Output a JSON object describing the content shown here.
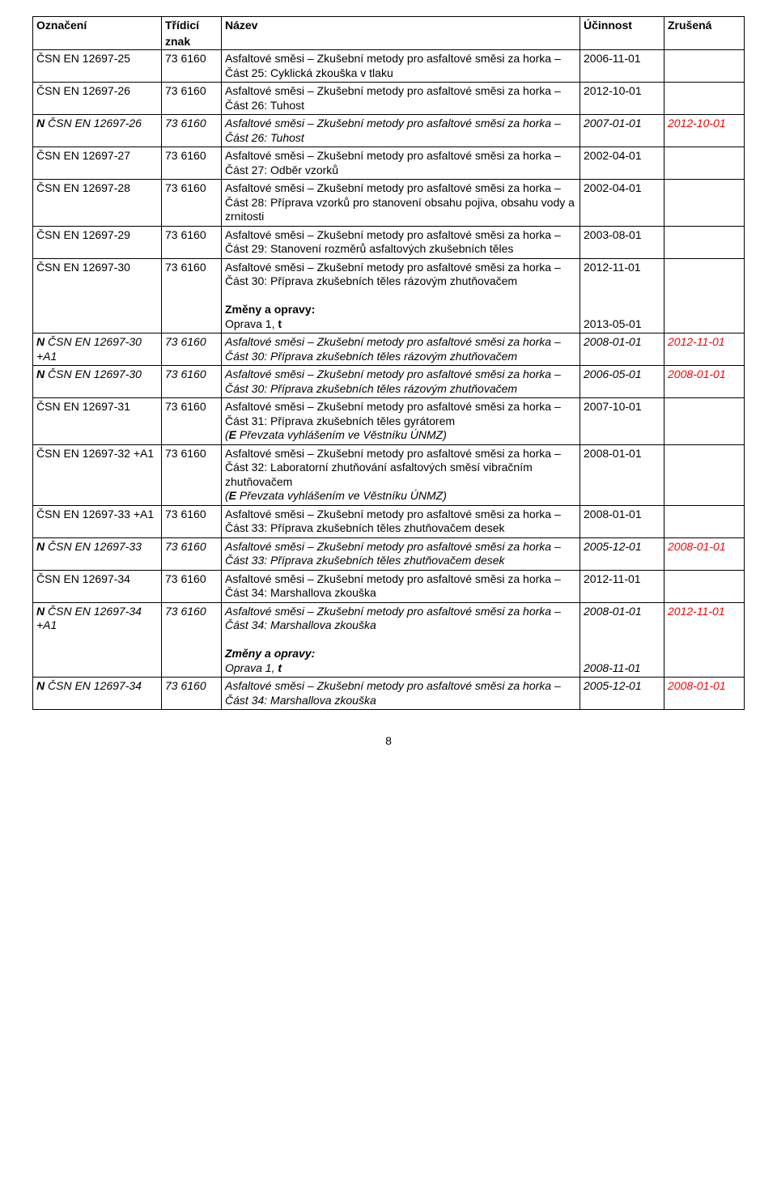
{
  "headers": {
    "oznaceni": "Označení",
    "tridici": "Třídicí",
    "znak": "znak",
    "nazev": "Název",
    "ucinnost": "Účinnost",
    "zrusena": "Zrušená"
  },
  "changes_label": "Změny a opravy:",
  "page_number": "8",
  "rows": [
    {
      "oznaceni": "ČSN EN 12697-25",
      "znak": "73 6160",
      "nazev": "Asfaltové směsi – Zkušební metody pro asfaltové směsi za horka – Část 25: Cyklická zkouška v tlaku",
      "ucinnost": "2006-11-01",
      "zrusena": "",
      "italic": false
    },
    {
      "oznaceni": "ČSN EN 12697-26",
      "znak": "73 6160",
      "nazev": "Asfaltové směsi – Zkušební metody pro asfaltové směsi za horka – Část 26: Tuhost",
      "ucinnost": "2012-10-01",
      "zrusena": "",
      "italic": false
    },
    {
      "oznaceni": "N ČSN EN 12697-26",
      "znak": "73 6160",
      "nazev": "Asfaltové směsi – Zkušební metody pro asfaltové směsi za horka – Část 26: Tuhost",
      "ucinnost": "2007-01-01",
      "zrusena": "2012-10-01",
      "italic": true,
      "oz_bold_prefix": "N "
    },
    {
      "oznaceni": "ČSN EN 12697-27",
      "znak": "73 6160",
      "nazev": "Asfaltové směsi – Zkušební metody pro asfaltové směsi za horka – Část 27: Odběr vzorků",
      "ucinnost": "2002-04-01",
      "zrusena": "",
      "italic": false
    },
    {
      "oznaceni": "ČSN EN 12697-28",
      "znak": "73 6160",
      "nazev": "Asfaltové směsi – Zkušební metody pro asfaltové směsi za horka – Část 28: Příprava vzorků pro stanovení obsahu pojiva, obsahu vody a zrnitosti",
      "ucinnost": "2002-04-01",
      "zrusena": "",
      "italic": false
    },
    {
      "oznaceni": "ČSN EN 12697-29",
      "znak": "73 6160",
      "nazev": "Asfaltové směsi – Zkušební metody pro asfaltové směsi za horka – Část 29: Stanovení rozměrů asfaltových zkušebních těles",
      "ucinnost": "2003-08-01",
      "zrusena": "",
      "italic": false
    },
    {
      "oznaceni": "ČSN EN 12697-30",
      "znak": "73 6160",
      "nazev": "Asfaltové směsi – Zkušební metody pro asfaltové směsi za horka – Část 30: Příprava zkušebních těles rázovým zhutňovačem",
      "ucinnost": "2012-11-01",
      "zrusena": "",
      "italic": false,
      "changes": "Oprava 1, t",
      "changes_bold_after": "t",
      "changes_pre": "Oprava 1, ",
      "changes_date": "2013-05-01"
    },
    {
      "oznaceni": "N ČSN EN 12697-30 +A1",
      "znak": "73 6160",
      "nazev": "Asfaltové směsi – Zkušební metody pro asfaltové směsi za horka – Část 30: Příprava zkušebních těles rázovým zhutňovačem",
      "ucinnost": "2008-01-01",
      "zrusena": "2012-11-01",
      "italic": true,
      "oz_bold_prefix": "N "
    },
    {
      "oznaceni": "N ČSN EN 12697-30",
      "znak": "73 6160",
      "nazev": "Asfaltové směsi – Zkušební metody pro asfaltové směsi za horka – Část 30: Příprava zkušebních těles rázovým zhutňovačem",
      "ucinnost": "2006-05-01",
      "zrusena": "2008-01-01",
      "italic": true,
      "oz_bold_prefix": "N "
    },
    {
      "oznaceni": "ČSN EN 12697-31",
      "znak": "73 6160",
      "nazev": "Asfaltové směsi – Zkušební metody pro asfaltové směsi za horka – Část 31: Příprava zkušebních těles gyrátorem",
      "ucinnost": "2007-10-01",
      "zrusena": "",
      "italic": false,
      "note_pre": "(",
      "note_bold": "E",
      "note_italic": " Převzata vyhlášením ve Věstníku ÚNMZ)",
      "has_note": true
    },
    {
      "oznaceni": "ČSN EN 12697-32 +A1",
      "znak": "73 6160",
      "nazev": "Asfaltové směsi – Zkušební metody pro asfaltové směsi za horka – Část 32: Laboratorní zhutňování asfaltových směsí vibračním zhutňovačem",
      "ucinnost": "2008-01-01",
      "zrusena": "",
      "italic": false,
      "note_pre": "(",
      "note_bold": "E",
      "note_italic": " Převzata vyhlášením ve Věstníku ÚNMZ)",
      "has_note": true
    },
    {
      "oznaceni": "ČSN EN 12697-33 +A1",
      "znak": "73 6160",
      "nazev": "Asfaltové směsi – Zkušební metody pro asfaltové směsi za horka – Část 33: Příprava zkušebních těles zhutňovačem desek",
      "ucinnost": "2008-01-01",
      "zrusena": "",
      "italic": false
    },
    {
      "oznaceni": "N ČSN EN 12697-33",
      "znak": "73 6160",
      "nazev": "Asfaltové směsi – Zkušební metody pro asfaltové směsi za horka – Část 33: Příprava zkušebních těles zhutňovačem desek",
      "ucinnost": "2005-12-01",
      "zrusena": "2008-01-01",
      "italic": true,
      "oz_bold_prefix": "N "
    },
    {
      "oznaceni": "ČSN EN 12697-34",
      "znak": "73 6160",
      "nazev": "Asfaltové směsi – Zkušební metody pro asfaltové směsi za horka – Část 34: Marshallova zkouška",
      "ucinnost": "2012-11-01",
      "zrusena": "",
      "italic": false
    },
    {
      "oznaceni": "N ČSN EN 12697-34 +A1",
      "znak": "73 6160",
      "nazev": "Asfaltové směsi – Zkušební metody pro asfaltové směsi za horka – Část 34: Marshallova zkouška",
      "ucinnost": "2008-01-01",
      "zrusena": "2012-11-01",
      "italic": true,
      "oz_bold_prefix": "N ",
      "changes_italic": true,
      "changes_label_suffix": ":",
      "changes_pre": "Oprava 1, ",
      "changes_bold_after": "t",
      "changes_date": "2008-11-01"
    },
    {
      "oznaceni": "N ČSN EN 12697-34",
      "znak": "73 6160",
      "nazev": "Asfaltové směsi – Zkušební metody pro asfaltové směsi za horka – Část 34: Marshallova zkouška",
      "ucinnost": "2005-12-01",
      "zrusena": "2008-01-01",
      "italic": true,
      "oz_bold_prefix": "N "
    }
  ]
}
